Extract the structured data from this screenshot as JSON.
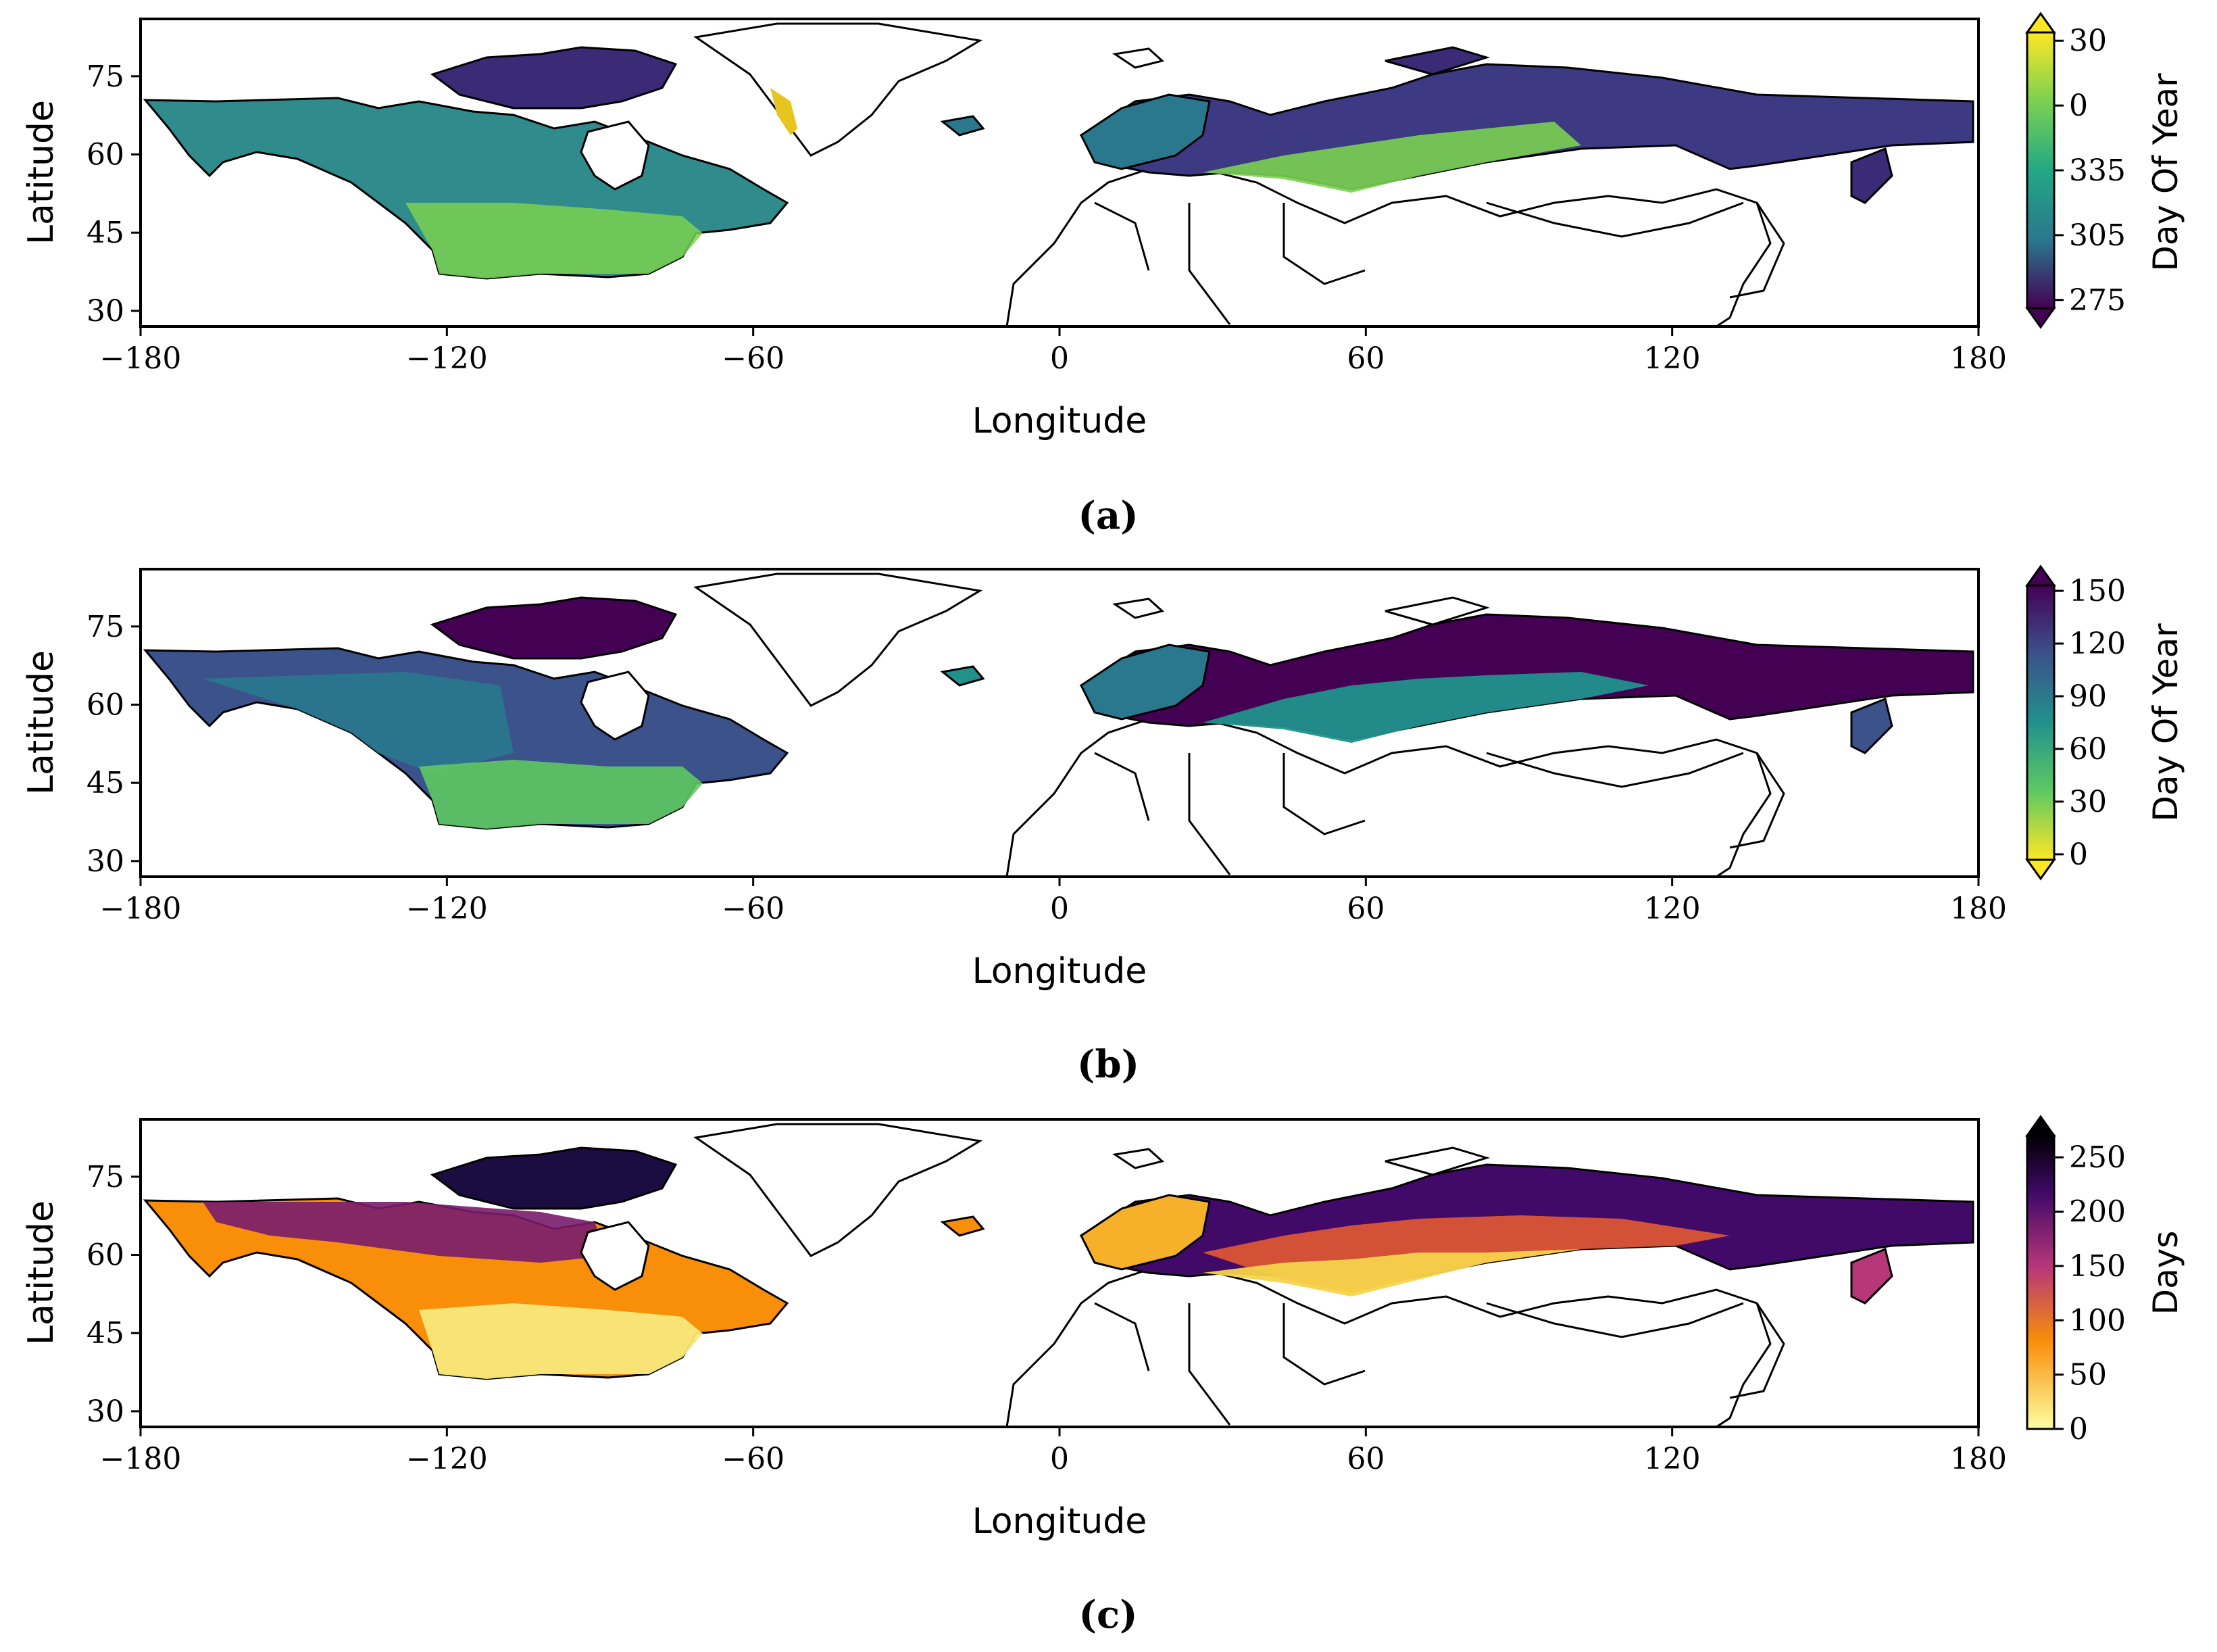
{
  "figure": {
    "panels": [
      {
        "id": "a",
        "caption": "(a)",
        "xlabel": "Longitude",
        "ylabel": "Latitude",
        "xticks": [
          "−180",
          "−120",
          "−60",
          "0",
          "60",
          "120",
          "180"
        ],
        "yticks": [
          "30",
          "45",
          "60",
          "75"
        ],
        "colorbar": {
          "label": "Day Of Year",
          "ticks": [
            "30",
            "0",
            "335",
            "305",
            "275"
          ],
          "colormap": "viridis",
          "extend": "both"
        }
      },
      {
        "id": "b",
        "caption": "(b)",
        "xlabel": "Longitude",
        "ylabel": "Latitude",
        "xticks": [
          "−180",
          "−120",
          "−60",
          "0",
          "60",
          "120",
          "180"
        ],
        "yticks": [
          "30",
          "45",
          "60",
          "75"
        ],
        "colorbar": {
          "label": "Day Of Year",
          "ticks": [
            "150",
            "120",
            "90",
            "60",
            "30",
            "0"
          ],
          "colormap": "viridis_r",
          "extend": "both"
        }
      },
      {
        "id": "c",
        "caption": "(c)",
        "xlabel": "Longitude",
        "ylabel": "Latitude",
        "xticks": [
          "−180",
          "−120",
          "−60",
          "0",
          "60",
          "120",
          "180"
        ],
        "yticks": [
          "30",
          "45",
          "60",
          "75"
        ],
        "colorbar": {
          "label": "Days",
          "ticks": [
            "250",
            "200",
            "150",
            "100",
            "50",
            "0"
          ],
          "colormap": "inferno_r",
          "extend": "max"
        }
      }
    ]
  },
  "chart_data": [
    {
      "type": "heatmap",
      "xlabel": "Longitude",
      "ylabel": "Latitude",
      "xlim": [
        -180,
        180
      ],
      "ylim": [
        27,
        86
      ],
      "colorbar_label": "Day Of Year",
      "colorbar_range": [
        275,
        30
      ],
      "colorbar_ticks": [
        30,
        0,
        335,
        305,
        275
      ]
    },
    {
      "type": "heatmap",
      "xlabel": "Longitude",
      "ylabel": "Latitude",
      "xlim": [
        -180,
        180
      ],
      "ylim": [
        27,
        86
      ],
      "colorbar_label": "Day Of Year",
      "colorbar_range": [
        0,
        150
      ],
      "colorbar_ticks": [
        150,
        120,
        90,
        60,
        30,
        0
      ]
    },
    {
      "type": "heatmap",
      "xlabel": "Longitude",
      "ylabel": "Latitude",
      "xlim": [
        -180,
        180
      ],
      "ylim": [
        27,
        86
      ],
      "colorbar_label": "Days",
      "colorbar_range": [
        0,
        270
      ],
      "colorbar_ticks": [
        250,
        200,
        150,
        100,
        50,
        0
      ]
    }
  ]
}
